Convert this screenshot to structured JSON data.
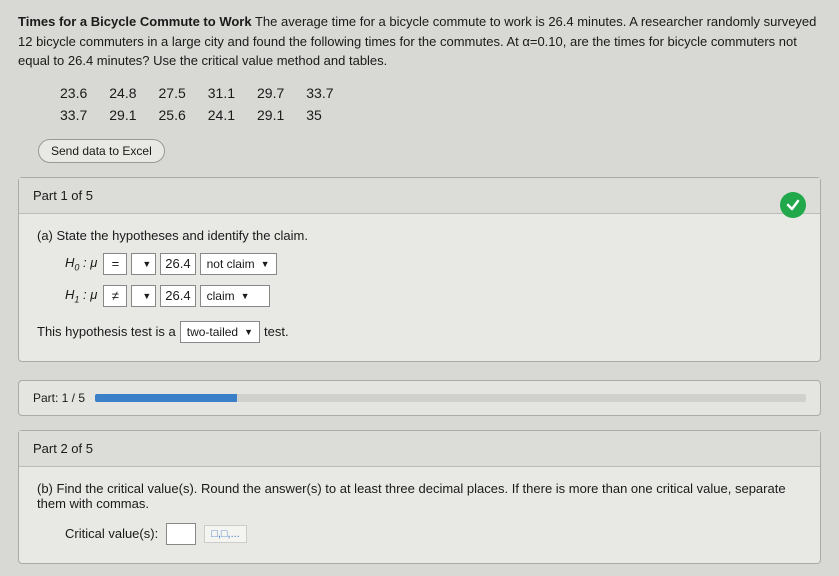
{
  "problem": {
    "title": "Times for a Bicycle Commute to Work",
    "body": "The average time for a bicycle commute to work is 26.4 minutes. A researcher randomly surveyed 12 bicycle commuters in a large city and found the following times for the commutes. At α=0.10, are the times for bicycle commuters not equal to 26.4 minutes? Use the critical value method and tables."
  },
  "data": {
    "row1": [
      "23.6",
      "24.8",
      "27.5",
      "31.1",
      "29.7",
      "33.7"
    ],
    "row2": [
      "33.7",
      "29.1",
      "25.6",
      "24.1",
      "29.1",
      "35"
    ]
  },
  "sendExcel": "Send data to Excel",
  "part1": {
    "header": "Part 1 of 5",
    "prompt": "(a) State the hypotheses and identify the claim.",
    "h0_label": "H",
    "h0_sub": "0",
    "h1_sub": "1",
    "colon": " : μ",
    "h0_op": "=",
    "h1_op": "≠",
    "value": "26.4",
    "h0_claim": "not claim",
    "h1_claim": "claim",
    "sentence_pre": "This hypothesis test is a ",
    "tail": "two-tailed",
    "sentence_post": " test."
  },
  "progress": {
    "label": "Part: 1 / 5",
    "percent": 20
  },
  "part2": {
    "header": "Part 2 of 5",
    "prompt": "(b) Find the critical value(s). Round the answer(s) to at least three decimal places. If there is more than one critical value, separate them with commas.",
    "critLabel": "Critical value(s):",
    "templ": "□,□,..."
  },
  "colors": {
    "accent": "#21a84a",
    "progress": "#3a7fc8"
  }
}
